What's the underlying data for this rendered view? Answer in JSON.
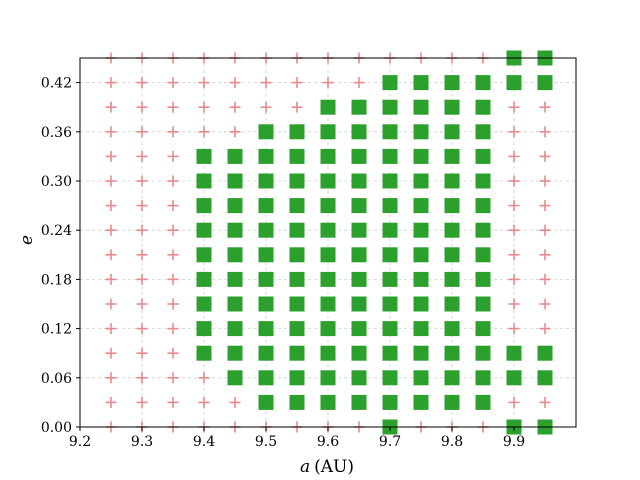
{
  "chart_data": {
    "type": "scatter",
    "title": "",
    "xlabel_var": "a",
    "xlabel_unit": "(AU)",
    "ylabel": "e",
    "xlim": [
      9.2,
      10.0
    ],
    "ylim": [
      0.0,
      0.45
    ],
    "xticks": [
      9.2,
      9.3,
      9.4,
      9.5,
      9.6,
      9.7,
      9.8,
      9.9
    ],
    "xtick_labels": [
      "9.2",
      "9.3",
      "9.4",
      "9.5",
      "9.6",
      "9.7",
      "9.8",
      "9.9"
    ],
    "yticks": [
      0.0,
      0.06,
      0.12,
      0.18,
      0.24,
      0.3,
      0.36,
      0.42
    ],
    "ytick_labels": [
      "0.00",
      "0.06",
      "0.12",
      "0.18",
      "0.24",
      "0.30",
      "0.36",
      "0.42"
    ],
    "grid": true,
    "legend": "none",
    "grid_a": [
      9.25,
      9.3,
      9.35,
      9.4,
      9.45,
      9.5,
      9.55,
      9.6,
      9.65,
      9.7,
      9.75,
      9.8,
      9.85,
      9.9,
      9.95
    ],
    "grid_e": [
      0.0,
      0.03,
      0.06,
      0.09,
      0.12,
      0.15,
      0.18,
      0.21,
      0.24,
      0.27,
      0.3,
      0.33,
      0.36,
      0.39,
      0.42,
      0.45
    ],
    "series": [
      {
        "marker": "square",
        "color": "#2ca02c",
        "points": [
          [
            9.4,
            0.09
          ],
          [
            9.4,
            0.12
          ],
          [
            9.4,
            0.15
          ],
          [
            9.4,
            0.18
          ],
          [
            9.4,
            0.21
          ],
          [
            9.4,
            0.24
          ],
          [
            9.4,
            0.27
          ],
          [
            9.4,
            0.3
          ],
          [
            9.4,
            0.33
          ],
          [
            9.45,
            0.06
          ],
          [
            9.45,
            0.09
          ],
          [
            9.45,
            0.12
          ],
          [
            9.45,
            0.15
          ],
          [
            9.45,
            0.18
          ],
          [
            9.45,
            0.21
          ],
          [
            9.45,
            0.24
          ],
          [
            9.45,
            0.27
          ],
          [
            9.45,
            0.3
          ],
          [
            9.45,
            0.33
          ],
          [
            9.5,
            0.03
          ],
          [
            9.5,
            0.06
          ],
          [
            9.5,
            0.09
          ],
          [
            9.5,
            0.12
          ],
          [
            9.5,
            0.15
          ],
          [
            9.5,
            0.18
          ],
          [
            9.5,
            0.21
          ],
          [
            9.5,
            0.24
          ],
          [
            9.5,
            0.27
          ],
          [
            9.5,
            0.3
          ],
          [
            9.5,
            0.33
          ],
          [
            9.5,
            0.36
          ],
          [
            9.55,
            0.03
          ],
          [
            9.55,
            0.06
          ],
          [
            9.55,
            0.09
          ],
          [
            9.55,
            0.12
          ],
          [
            9.55,
            0.15
          ],
          [
            9.55,
            0.18
          ],
          [
            9.55,
            0.21
          ],
          [
            9.55,
            0.24
          ],
          [
            9.55,
            0.27
          ],
          [
            9.55,
            0.3
          ],
          [
            9.55,
            0.33
          ],
          [
            9.55,
            0.36
          ],
          [
            9.6,
            0.03
          ],
          [
            9.6,
            0.06
          ],
          [
            9.6,
            0.09
          ],
          [
            9.6,
            0.12
          ],
          [
            9.6,
            0.15
          ],
          [
            9.6,
            0.18
          ],
          [
            9.6,
            0.21
          ],
          [
            9.6,
            0.24
          ],
          [
            9.6,
            0.27
          ],
          [
            9.6,
            0.3
          ],
          [
            9.6,
            0.33
          ],
          [
            9.6,
            0.36
          ],
          [
            9.6,
            0.39
          ],
          [
            9.65,
            0.03
          ],
          [
            9.65,
            0.06
          ],
          [
            9.65,
            0.09
          ],
          [
            9.65,
            0.12
          ],
          [
            9.65,
            0.15
          ],
          [
            9.65,
            0.18
          ],
          [
            9.65,
            0.21
          ],
          [
            9.65,
            0.24
          ],
          [
            9.65,
            0.27
          ],
          [
            9.65,
            0.3
          ],
          [
            9.65,
            0.33
          ],
          [
            9.65,
            0.36
          ],
          [
            9.65,
            0.39
          ],
          [
            9.7,
            0.0
          ],
          [
            9.7,
            0.03
          ],
          [
            9.7,
            0.06
          ],
          [
            9.7,
            0.09
          ],
          [
            9.7,
            0.12
          ],
          [
            9.7,
            0.15
          ],
          [
            9.7,
            0.18
          ],
          [
            9.7,
            0.21
          ],
          [
            9.7,
            0.24
          ],
          [
            9.7,
            0.27
          ],
          [
            9.7,
            0.3
          ],
          [
            9.7,
            0.33
          ],
          [
            9.7,
            0.36
          ],
          [
            9.7,
            0.39
          ],
          [
            9.7,
            0.42
          ],
          [
            9.75,
            0.03
          ],
          [
            9.75,
            0.06
          ],
          [
            9.75,
            0.09
          ],
          [
            9.75,
            0.12
          ],
          [
            9.75,
            0.15
          ],
          [
            9.75,
            0.18
          ],
          [
            9.75,
            0.21
          ],
          [
            9.75,
            0.24
          ],
          [
            9.75,
            0.27
          ],
          [
            9.75,
            0.3
          ],
          [
            9.75,
            0.33
          ],
          [
            9.75,
            0.36
          ],
          [
            9.75,
            0.39
          ],
          [
            9.75,
            0.42
          ],
          [
            9.8,
            0.03
          ],
          [
            9.8,
            0.06
          ],
          [
            9.8,
            0.09
          ],
          [
            9.8,
            0.12
          ],
          [
            9.8,
            0.15
          ],
          [
            9.8,
            0.18
          ],
          [
            9.8,
            0.21
          ],
          [
            9.8,
            0.24
          ],
          [
            9.8,
            0.27
          ],
          [
            9.8,
            0.3
          ],
          [
            9.8,
            0.33
          ],
          [
            9.8,
            0.36
          ],
          [
            9.8,
            0.39
          ],
          [
            9.8,
            0.42
          ],
          [
            9.85,
            0.03
          ],
          [
            9.85,
            0.06
          ],
          [
            9.85,
            0.09
          ],
          [
            9.85,
            0.12
          ],
          [
            9.85,
            0.15
          ],
          [
            9.85,
            0.18
          ],
          [
            9.85,
            0.21
          ],
          [
            9.85,
            0.24
          ],
          [
            9.85,
            0.27
          ],
          [
            9.85,
            0.3
          ],
          [
            9.85,
            0.33
          ],
          [
            9.85,
            0.36
          ],
          [
            9.85,
            0.39
          ],
          [
            9.85,
            0.42
          ],
          [
            9.9,
            0.0
          ],
          [
            9.9,
            0.06
          ],
          [
            9.9,
            0.09
          ],
          [
            9.9,
            0.42
          ],
          [
            9.9,
            0.45
          ],
          [
            9.95,
            0.0
          ],
          [
            9.95,
            0.06
          ],
          [
            9.95,
            0.09
          ],
          [
            9.95,
            0.42
          ],
          [
            9.95,
            0.45
          ]
        ]
      },
      {
        "marker": "plus",
        "color": "#e88a8a",
        "rule": "all grid points not in the square series"
      }
    ]
  }
}
